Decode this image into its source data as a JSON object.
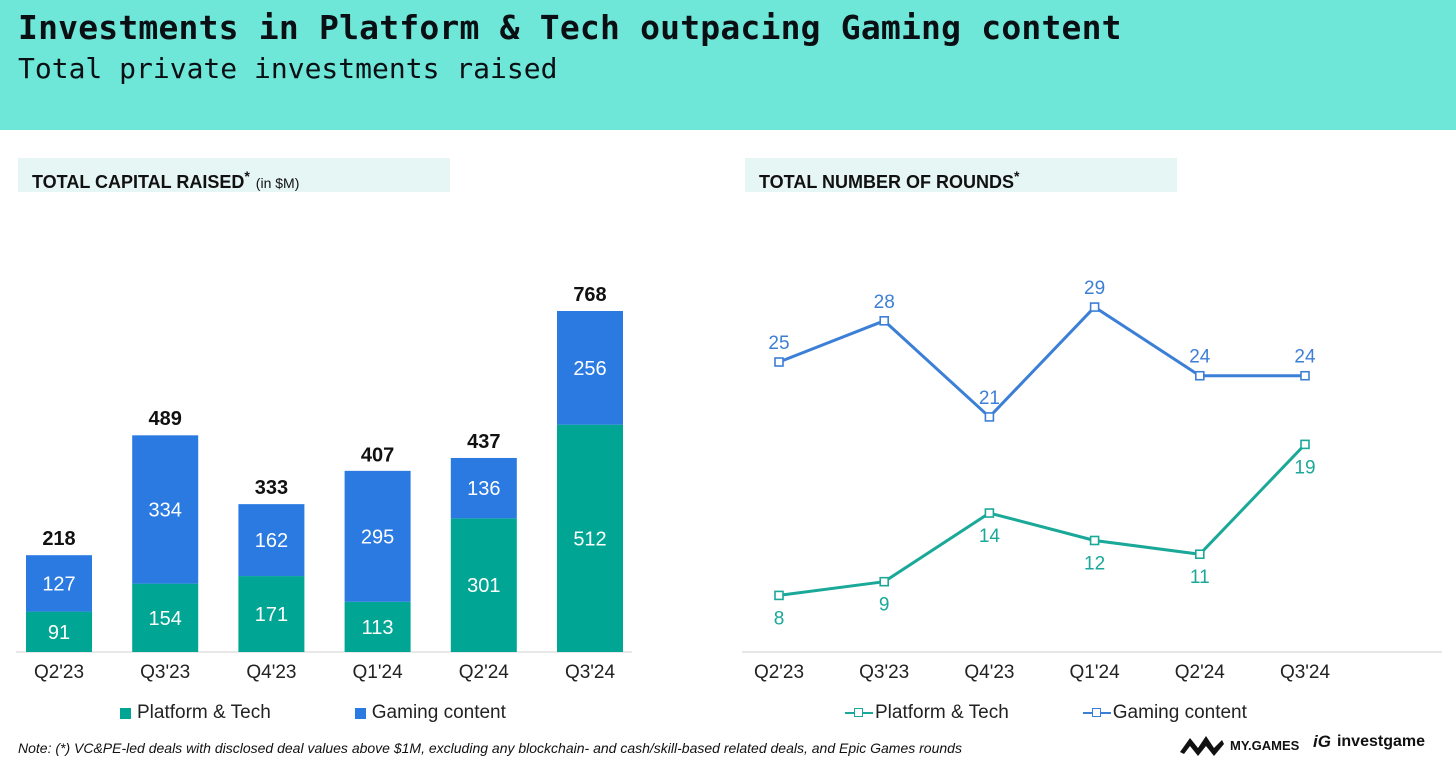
{
  "header": {
    "title": "Investments in Platform & Tech outpacing Gaming content",
    "subtitle": "Total private investments raised"
  },
  "left_panel": {
    "heading": "TOTAL CAPITAL RAISED",
    "asterisk": "*",
    "unit": "(in $M)"
  },
  "right_panel": {
    "heading": "TOTAL NUMBER OF ROUNDS",
    "asterisk": "*"
  },
  "colors": {
    "platform_bar": "#00a693",
    "gaming_bar": "#2a7ae2",
    "platform_line": "#1aa898",
    "gaming_line": "#3c7fd6",
    "banner": "#6ee6d8"
  },
  "chart_data": [
    {
      "type": "bar",
      "stacked": true,
      "title": "TOTAL CAPITAL RAISED",
      "categories": [
        "Q2'23",
        "Q3'23",
        "Q4'23",
        "Q1'24",
        "Q2'24",
        "Q3'24"
      ],
      "series": [
        {
          "name": "Platform & Tech",
          "values": [
            91,
            154,
            171,
            113,
            301,
            512
          ]
        },
        {
          "name": "Gaming content",
          "values": [
            127,
            334,
            162,
            295,
            136,
            256
          ]
        }
      ],
      "totals": [
        218,
        489,
        333,
        407,
        437,
        768
      ],
      "ylim": [
        0,
        768
      ],
      "grid": false,
      "legend": "bottom"
    },
    {
      "type": "line",
      "title": "TOTAL NUMBER OF ROUNDS",
      "categories": [
        "Q2'23",
        "Q3'23",
        "Q4'23",
        "Q1'24",
        "Q2'24",
        "Q3'24"
      ],
      "series": [
        {
          "name": "Platform & Tech",
          "values": [
            8,
            9,
            14,
            12,
            11,
            19
          ]
        },
        {
          "name": "Gaming content",
          "values": [
            25,
            28,
            21,
            29,
            24,
            24
          ]
        }
      ],
      "ylim": [
        4,
        31
      ],
      "grid": false,
      "legend": "bottom"
    }
  ],
  "footer": {
    "note": "Note: (*) VC&PE-led deals with disclosed deal values above $1M, excluding any blockchain- and cash/skill-based related deals, and Epic Games rounds",
    "logo_mygames": "MY.GAMES",
    "logo_investgame_mark": "iG",
    "logo_investgame": "investgame"
  }
}
